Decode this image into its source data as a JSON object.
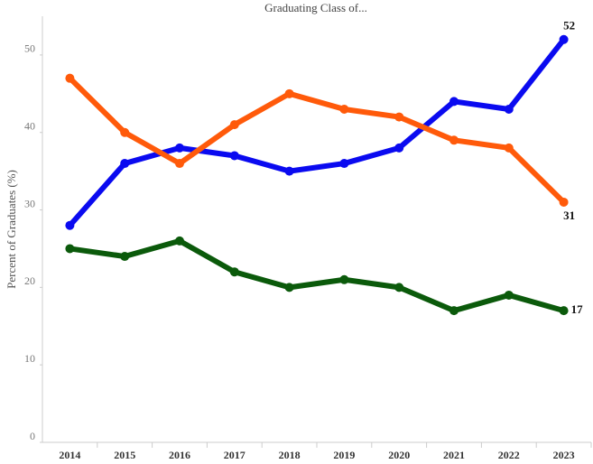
{
  "chart_data": {
    "type": "line",
    "title": "Graduating Class of...",
    "y_label": "Percent of Graduates (%)",
    "categories": [
      "2014",
      "2015",
      "2016",
      "2017",
      "2018",
      "2019",
      "2020",
      "2021",
      "2022",
      "2023"
    ],
    "series": [
      {
        "color": "#0a0af0",
        "values": [
          28,
          36,
          38,
          37,
          35,
          36,
          38,
          44,
          43,
          52
        ]
      },
      {
        "color": "#ff5a0a",
        "values": [
          47,
          40,
          36,
          41,
          45,
          43,
          42,
          39,
          38,
          31
        ]
      },
      {
        "color": "#0b5a0b",
        "values": [
          25,
          24,
          26,
          22,
          20,
          21,
          20,
          17,
          19,
          17
        ]
      }
    ],
    "ylim": [
      0,
      55
    ],
    "yticks": [
      0,
      10,
      20,
      30,
      40,
      50
    ],
    "grid": false
  }
}
